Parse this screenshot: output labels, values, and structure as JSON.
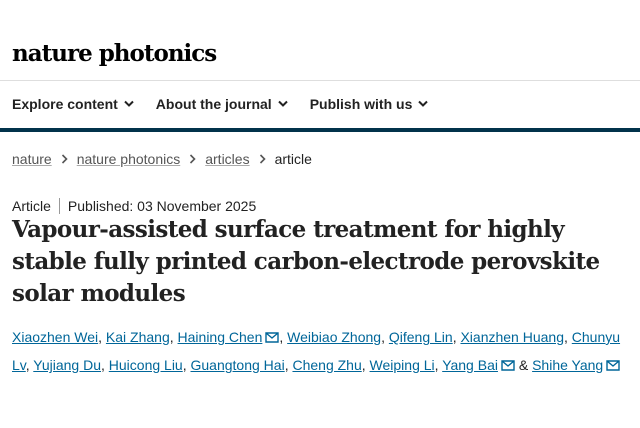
{
  "header": {
    "brand": "nature photonics"
  },
  "nav": {
    "items": [
      "Explore content",
      "About the journal",
      "Publish with us"
    ]
  },
  "breadcrumbs": [
    "nature",
    "nature photonics",
    "articles",
    "article"
  ],
  "article": {
    "type": "Article",
    "published": "Published: 03 November 2025",
    "title": "Vapour-assisted surface treatment for highly stable fully printed carbon-electrode perovskite solar modules",
    "author_separator": ",",
    "last_separator": "&",
    "authors": [
      {
        "name": "Xiaozhen Wei",
        "corresponding": false
      },
      {
        "name": "Kai Zhang",
        "corresponding": false
      },
      {
        "name": "Haining Chen",
        "corresponding": true
      },
      {
        "name": "Weibiao Zhong",
        "corresponding": false
      },
      {
        "name": "Qifeng Lin",
        "corresponding": false
      },
      {
        "name": "Xianzhen Huang",
        "corresponding": false
      },
      {
        "name": "Chunyu Lv",
        "corresponding": false
      },
      {
        "name": "Yujiang Du",
        "corresponding": false
      },
      {
        "name": "Huicong Liu",
        "corresponding": false
      },
      {
        "name": "Guangtong Hai",
        "corresponding": false
      },
      {
        "name": "Cheng Zhu",
        "corresponding": false
      },
      {
        "name": "Weiping Li",
        "corresponding": false
      },
      {
        "name": "Yang Bai",
        "corresponding": true
      },
      {
        "name": "Shihe Yang",
        "corresponding": true
      }
    ]
  }
}
